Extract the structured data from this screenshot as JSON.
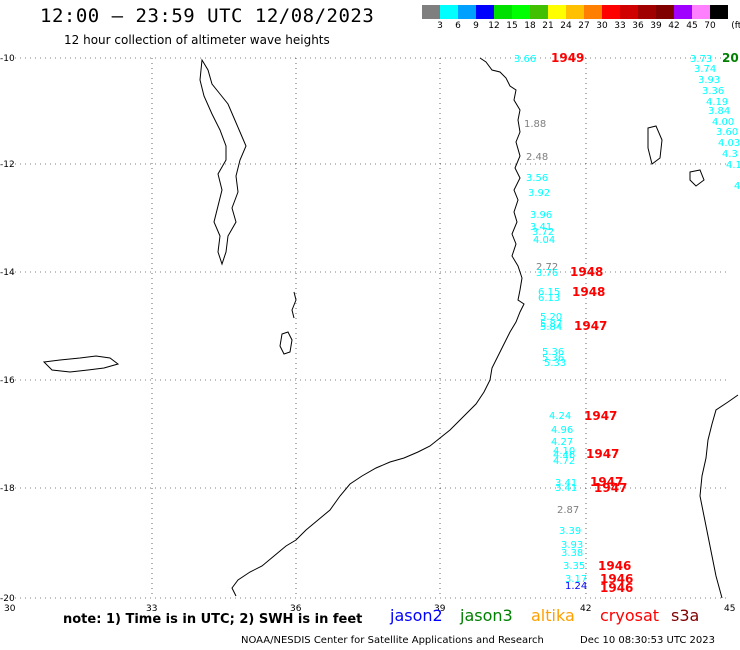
{
  "header": {
    "title": "12:00 – 23:59 UTC 12/08/2023",
    "subtitle": "12 hour collection of altimeter wave heights"
  },
  "scale": {
    "colors": [
      "#7f7f7f",
      "#00ffff",
      "#00a0ff",
      "#0000ff",
      "#00e000",
      "#00ff00",
      "#40c000",
      "#ffff00",
      "#ffc000",
      "#ff8000",
      "#ff0000",
      "#d00000",
      "#a00000",
      "#800000",
      "#a000ff",
      "#ff80ff",
      "#000000"
    ],
    "labels": [
      "3",
      "6",
      "9",
      "12",
      "15",
      "18",
      "21",
      "24",
      "27",
      "30",
      "33",
      "36",
      "39",
      "42",
      "45",
      "70"
    ],
    "unit": "(ft)"
  },
  "axes": {
    "lat_labels": [
      "-10",
      "-12",
      "-14",
      "-16",
      "-18",
      "-20"
    ],
    "lon_labels": [
      "30",
      "33",
      "36",
      "39",
      "42",
      "45"
    ]
  },
  "observations": [
    {
      "text": "3.66",
      "color": "#00ffff"
    },
    {
      "text": "1949",
      "color": "#ff0000"
    },
    {
      "text": "3.73",
      "color": "#00ffff"
    },
    {
      "text": "20",
      "color": "#008000"
    },
    {
      "text": "3.74",
      "color": "#00ffff"
    },
    {
      "text": "3.93",
      "color": "#00ffff"
    },
    {
      "text": "3.36",
      "color": "#00ffff"
    },
    {
      "text": "4.19",
      "color": "#00ffff"
    },
    {
      "text": "3.84",
      "color": "#00ffff"
    },
    {
      "text": "4.00",
      "color": "#00ffff"
    },
    {
      "text": "3.60",
      "color": "#00ffff"
    },
    {
      "text": "4.03",
      "color": "#00ffff"
    },
    {
      "text": "4.3",
      "color": "#00ffff"
    },
    {
      "text": "4.1",
      "color": "#00ffff"
    },
    {
      "text": "4",
      "color": "#00ffff"
    },
    {
      "text": "1.88",
      "color": "#7f7f7f"
    },
    {
      "text": "2.48",
      "color": "#7f7f7f"
    },
    {
      "text": "3.56",
      "color": "#00ffff"
    },
    {
      "text": "3.92",
      "color": "#00ffff"
    },
    {
      "text": "3.96",
      "color": "#00ffff"
    },
    {
      "text": "3.41",
      "color": "#00ffff"
    },
    {
      "text": "3.72",
      "color": "#00ffff"
    },
    {
      "text": "4.04",
      "color": "#00ffff"
    },
    {
      "text": "2.72",
      "color": "#7f7f7f"
    },
    {
      "text": "3.76",
      "color": "#00ffff"
    },
    {
      "text": "1948",
      "color": "#ff0000"
    },
    {
      "text": "6.15",
      "color": "#00ffff"
    },
    {
      "text": "6.13",
      "color": "#00ffff"
    },
    {
      "text": "1948",
      "color": "#ff0000"
    },
    {
      "text": "5.20",
      "color": "#00ffff"
    },
    {
      "text": "5.87",
      "color": "#00ffff"
    },
    {
      "text": "5.84",
      "color": "#00ffff"
    },
    {
      "text": "1947",
      "color": "#ff0000"
    },
    {
      "text": "5.36",
      "color": "#00ffff"
    },
    {
      "text": "5.36",
      "color": "#00ffff"
    },
    {
      "text": "5.33",
      "color": "#00ffff"
    },
    {
      "text": "4.24",
      "color": "#00ffff"
    },
    {
      "text": "1947",
      "color": "#ff0000"
    },
    {
      "text": "4.96",
      "color": "#00ffff"
    },
    {
      "text": "4.27",
      "color": "#00ffff"
    },
    {
      "text": "4.10",
      "color": "#00ffff"
    },
    {
      "text": "4.46",
      "color": "#00ffff"
    },
    {
      "text": "1947",
      "color": "#ff0000"
    },
    {
      "text": "4.72",
      "color": "#00ffff"
    },
    {
      "text": "3.41",
      "color": "#00ffff"
    },
    {
      "text": "1947",
      "color": "#ff0000"
    },
    {
      "text": "3.41",
      "color": "#00ffff"
    },
    {
      "text": "1947",
      "color": "#ff0000"
    },
    {
      "text": "2.87",
      "color": "#7f7f7f"
    },
    {
      "text": "3.39",
      "color": "#00ffff"
    },
    {
      "text": "3.93",
      "color": "#00ffff"
    },
    {
      "text": "3.38",
      "color": "#00ffff"
    },
    {
      "text": "3.35",
      "color": "#00ffff"
    },
    {
      "text": "1946",
      "color": "#ff0000"
    },
    {
      "text": "3.17",
      "color": "#00ffff"
    },
    {
      "text": "1946",
      "color": "#ff0000"
    },
    {
      "text": "1.24",
      "color": "#0000ff"
    },
    {
      "text": "1946",
      "color": "#ff0000"
    }
  ],
  "footer": {
    "note": "note:  1) Time is in UTC;  2) SWH is in feet",
    "satellites": [
      {
        "name": "jason2",
        "color": "#0000ff"
      },
      {
        "name": "jason3",
        "color": "#008000"
      },
      {
        "name": "altika",
        "color": "#ffa000"
      },
      {
        "name": "cryosat",
        "color": "#ff0000"
      },
      {
        "name": "s3a",
        "color": "#800000"
      }
    ],
    "credit": "NOAA/NESDIS Center for Satellite Applications and Research",
    "timestamp": "Dec 10 08:30:53 UTC 2023"
  }
}
